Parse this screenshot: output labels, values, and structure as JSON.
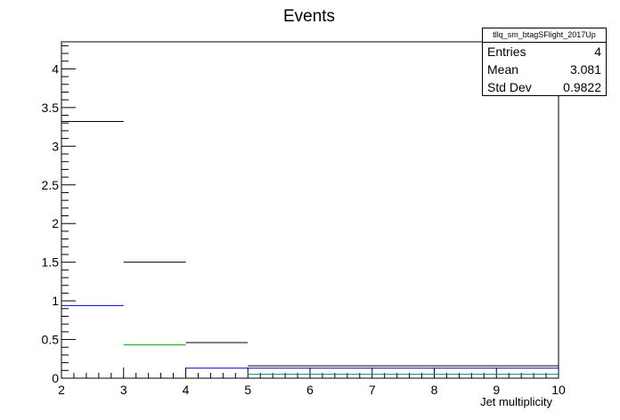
{
  "chart_data": {
    "type": "step-histogram",
    "title": "Events",
    "xlabel": "Jet multiplicity",
    "ylabel": "",
    "xlim": [
      2,
      10
    ],
    "ylim": [
      0,
      4.35
    ],
    "xticks": [
      "2",
      "3",
      "4",
      "5",
      "6",
      "7",
      "8",
      "9",
      "10"
    ],
    "yticks": [
      "0",
      "0.5",
      "1",
      "1.5",
      "2",
      "2.5",
      "3",
      "3.5",
      "4"
    ],
    "bin_edges": [
      2,
      3,
      4,
      5,
      6,
      7,
      8,
      9,
      10
    ],
    "series": [
      {
        "color": "#000000",
        "values": [
          3.32,
          1.5,
          0.46,
          0.16,
          0.16,
          0.16,
          0.16,
          0.16
        ]
      },
      {
        "color": "#0000cc",
        "values": [
          0.94,
          null,
          0.13,
          0.13,
          0.13,
          0.13,
          0.13,
          0.13
        ]
      },
      {
        "color": "#00aa00",
        "values": [
          null,
          0.43,
          null,
          null,
          null,
          null,
          null,
          null
        ]
      },
      {
        "color": "#008888",
        "values": [
          null,
          null,
          null,
          0.05,
          0.05,
          0.05,
          0.05,
          0.05
        ]
      }
    ]
  },
  "stats": {
    "title": "tllq_sm_btagSFlight_2017Up",
    "rows": [
      {
        "label": "Entries",
        "value": "4"
      },
      {
        "label": "Mean",
        "value": "3.081"
      },
      {
        "label": "Std Dev",
        "value": "0.9822"
      }
    ]
  }
}
